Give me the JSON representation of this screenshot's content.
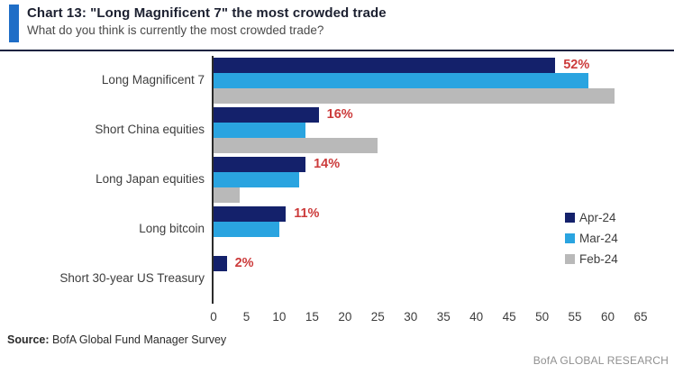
{
  "header": {
    "title": "Chart 13: \"Long Magnificent 7\" the most crowded trade",
    "subtitle": "What do you think is currently the most crowded trade?"
  },
  "chart_data": {
    "type": "bar",
    "orientation": "horizontal",
    "title": "Chart 13: \"Long Magnificent 7\" the most crowded trade",
    "subtitle": "What do you think is currently the most crowded trade?",
    "categories": [
      "Long Magnificent 7",
      "Short China equities",
      "Long Japan equities",
      "Long bitcoin",
      "Short 30-year US Treasury"
    ],
    "series": [
      {
        "name": "Apr-24",
        "color": "#14216b",
        "values": [
          52,
          16,
          14,
          11,
          2
        ]
      },
      {
        "name": "Mar-24",
        "color": "#2aa4e0",
        "values": [
          57,
          14,
          13,
          10,
          0
        ]
      },
      {
        "name": "Feb-24",
        "color": "#b9b9b9",
        "values": [
          61,
          25,
          4,
          0,
          0
        ]
      }
    ],
    "data_labels": {
      "series": "Apr-24",
      "values": [
        "52%",
        "16%",
        "14%",
        "11%",
        "2%"
      ],
      "color": "#cc3b3b"
    },
    "x_ticks": [
      0,
      5,
      10,
      15,
      20,
      25,
      30,
      35,
      40,
      45,
      50,
      55,
      60,
      65
    ],
    "xlim": [
      0,
      65
    ],
    "xlabel": "",
    "ylabel": "",
    "grid": false,
    "legend_position": "right"
  },
  "footer": {
    "source_label": "Source:",
    "source_text": " BofA Global Fund Manager Survey",
    "brand": "BofA GLOBAL RESEARCH"
  }
}
